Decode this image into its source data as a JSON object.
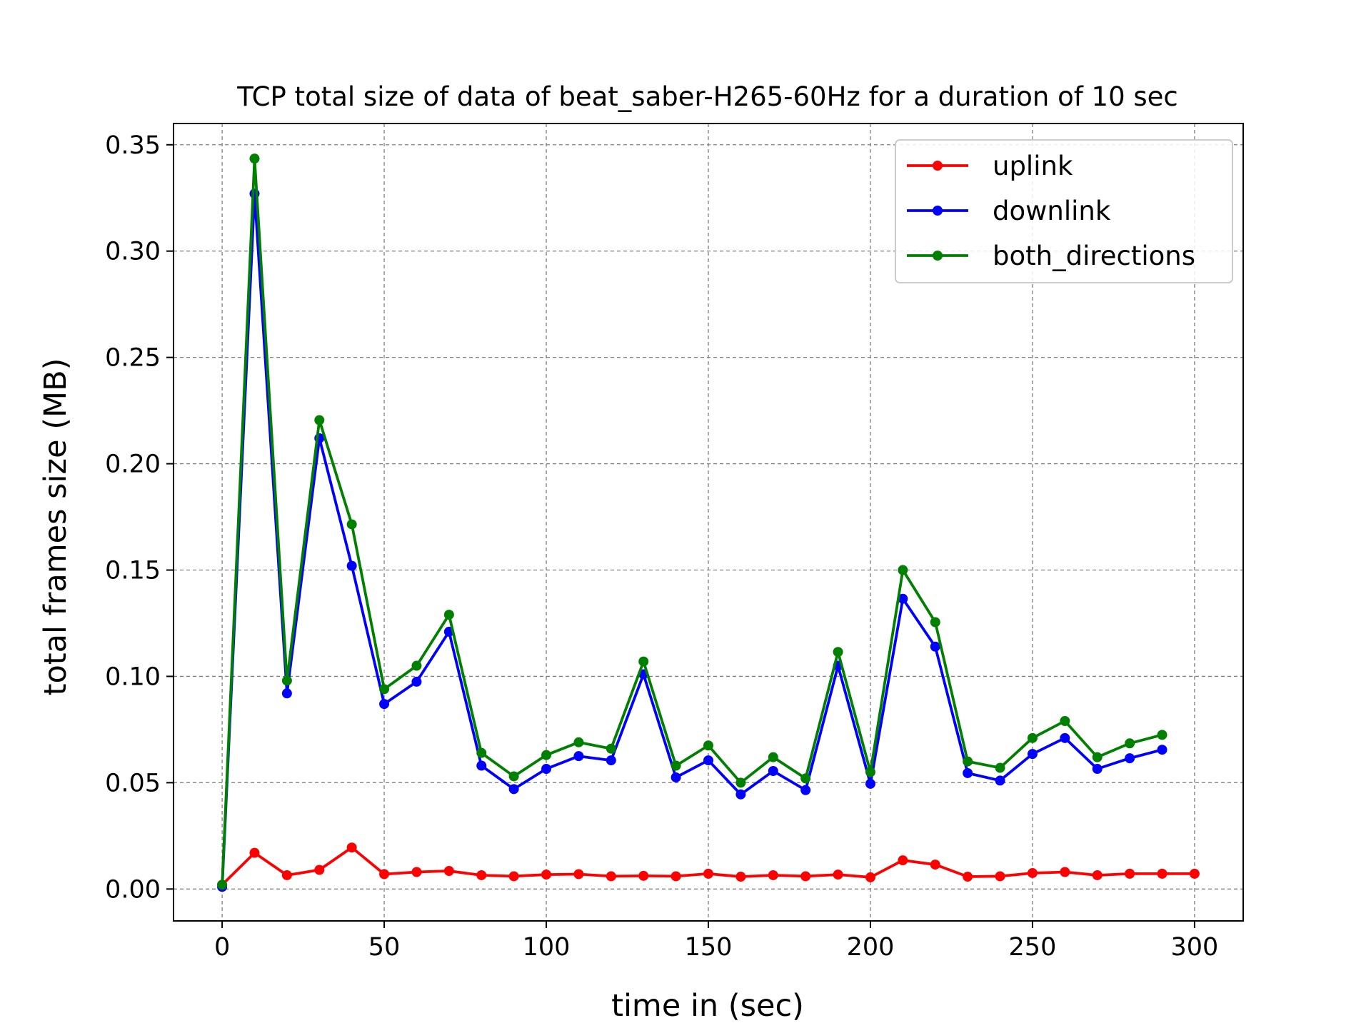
{
  "chart_data": {
    "type": "line",
    "title": "TCP total size of data of beat_saber-H265-60Hz for a duration of 10 sec",
    "xlabel": "time in (sec)",
    "ylabel": "total frames size (MB)",
    "xlim": [
      -15,
      315
    ],
    "ylim": [
      -0.015,
      0.36
    ],
    "xticks": [
      0,
      50,
      100,
      150,
      200,
      250,
      300
    ],
    "xtick_labels": [
      "0",
      "50",
      "100",
      "150",
      "200",
      "250",
      "300"
    ],
    "yticks": [
      0.0,
      0.05,
      0.1,
      0.15,
      0.2,
      0.25,
      0.3,
      0.35
    ],
    "ytick_labels": [
      "0.00",
      "0.05",
      "0.10",
      "0.15",
      "0.20",
      "0.25",
      "0.30",
      "0.35"
    ],
    "grid": true,
    "legend_position": "top-right",
    "series": [
      {
        "name": "uplink",
        "color": "#ff0000",
        "points": [
          [
            0,
            0.002
          ],
          [
            10,
            0.017
          ],
          [
            20,
            0.0065
          ],
          [
            30,
            0.009
          ],
          [
            40,
            0.0195
          ],
          [
            50,
            0.007
          ],
          [
            60,
            0.008
          ],
          [
            70,
            0.0085
          ],
          [
            80,
            0.0065
          ],
          [
            90,
            0.006
          ],
          [
            100,
            0.0068
          ],
          [
            110,
            0.007
          ],
          [
            120,
            0.006
          ],
          [
            130,
            0.0062
          ],
          [
            140,
            0.006
          ],
          [
            150,
            0.0072
          ],
          [
            160,
            0.0058
          ],
          [
            170,
            0.0065
          ],
          [
            180,
            0.006
          ],
          [
            190,
            0.0068
          ],
          [
            200,
            0.0055
          ],
          [
            210,
            0.0135
          ],
          [
            220,
            0.0115
          ],
          [
            230,
            0.0058
          ],
          [
            240,
            0.006
          ],
          [
            250,
            0.0075
          ],
          [
            260,
            0.008
          ],
          [
            270,
            0.0065
          ],
          [
            280,
            0.0072
          ],
          [
            290,
            0.0072
          ],
          [
            300,
            0.0072
          ]
        ]
      },
      {
        "name": "downlink",
        "color": "#0000ff",
        "points": [
          [
            0,
            0.001
          ],
          [
            10,
            0.327
          ],
          [
            20,
            0.092
          ],
          [
            30,
            0.212
          ],
          [
            40,
            0.152
          ],
          [
            50,
            0.087
          ],
          [
            60,
            0.0975
          ],
          [
            70,
            0.121
          ],
          [
            80,
            0.058
          ],
          [
            90,
            0.047
          ],
          [
            100,
            0.0565
          ],
          [
            110,
            0.0625
          ],
          [
            120,
            0.0605
          ],
          [
            130,
            0.101
          ],
          [
            140,
            0.0525
          ],
          [
            150,
            0.0605
          ],
          [
            160,
            0.0445
          ],
          [
            170,
            0.0555
          ],
          [
            180,
            0.0465
          ],
          [
            190,
            0.105
          ],
          [
            200,
            0.0495
          ],
          [
            210,
            0.1365
          ],
          [
            220,
            0.114
          ],
          [
            230,
            0.0545
          ],
          [
            240,
            0.051
          ],
          [
            250,
            0.0635
          ],
          [
            260,
            0.071
          ],
          [
            270,
            0.0565
          ],
          [
            280,
            0.0615
          ],
          [
            290,
            0.0655
          ]
        ]
      },
      {
        "name": "both_directions",
        "color": "#008000",
        "points": [
          [
            0,
            0.002
          ],
          [
            10,
            0.3435
          ],
          [
            20,
            0.098
          ],
          [
            30,
            0.2205
          ],
          [
            40,
            0.1715
          ],
          [
            50,
            0.094
          ],
          [
            60,
            0.105
          ],
          [
            70,
            0.129
          ],
          [
            80,
            0.064
          ],
          [
            90,
            0.053
          ],
          [
            100,
            0.063
          ],
          [
            110,
            0.069
          ],
          [
            120,
            0.066
          ],
          [
            130,
            0.107
          ],
          [
            140,
            0.058
          ],
          [
            150,
            0.0675
          ],
          [
            160,
            0.05
          ],
          [
            170,
            0.062
          ],
          [
            180,
            0.052
          ],
          [
            190,
            0.1115
          ],
          [
            200,
            0.055
          ],
          [
            210,
            0.15
          ],
          [
            220,
            0.1255
          ],
          [
            230,
            0.06
          ],
          [
            240,
            0.057
          ],
          [
            250,
            0.071
          ],
          [
            260,
            0.079
          ],
          [
            270,
            0.062
          ],
          [
            280,
            0.0685
          ],
          [
            290,
            0.0725
          ]
        ]
      }
    ]
  }
}
